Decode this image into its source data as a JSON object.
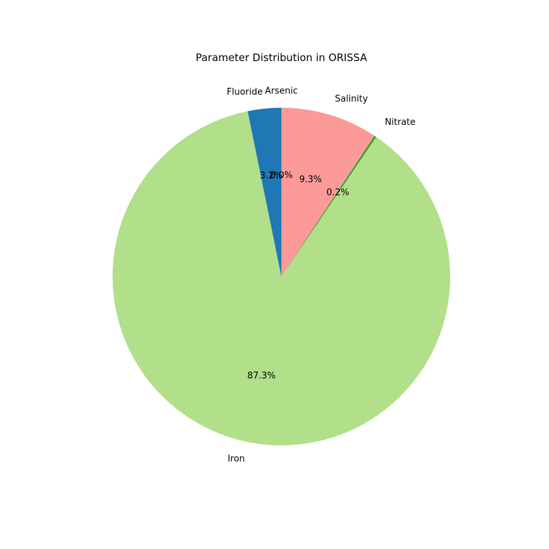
{
  "chart_data": {
    "type": "pie",
    "title": "Parameter Distribution in ORISSA",
    "slices": [
      {
        "label": "Arsenic",
        "value": 0.0,
        "pct_label": "0.0%",
        "color": "#a6cee3"
      },
      {
        "label": "Salinity",
        "value": 9.3,
        "pct_label": "9.3%",
        "color": "#fb9a99"
      },
      {
        "label": "Nitrate",
        "value": 0.2,
        "pct_label": "0.2%",
        "color": "#33a02c"
      },
      {
        "label": "Iron",
        "value": 87.3,
        "pct_label": "87.3%",
        "color": "#b2df8a"
      },
      {
        "label": "Fluoride",
        "value": 3.2,
        "pct_label": "3.2%",
        "color": "#1f78b4"
      }
    ],
    "start_angle_deg": 90,
    "direction": "clockwise"
  }
}
